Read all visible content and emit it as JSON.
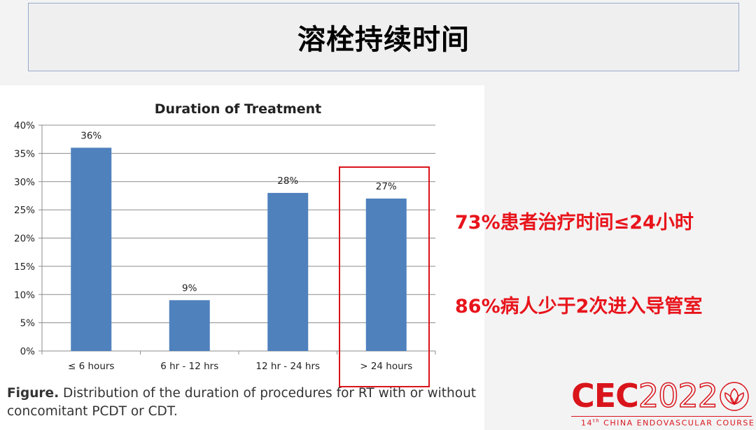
{
  "slide": {
    "title": "溶栓持续时间",
    "notes": [
      "73%患者治疗时间≤24小时",
      "86%病人少于2次进入导管室"
    ]
  },
  "figure": {
    "caption_label": "Figure.",
    "caption_text": "Distribution of the duration of procedures for RT with or without concomitant PCDT or CDT."
  },
  "logo": {
    "main": "CEC",
    "year": "2022",
    "arc_text": "China Endovascular Course",
    "sub_prefix": "14",
    "sub_sup": "th",
    "sub_rest": " CHINA ENDOVASCULAR COURSE"
  },
  "colors": {
    "bar": "#4f81bd",
    "highlight": "#d9141b",
    "note": "#e8141b"
  },
  "chart_data": {
    "type": "bar",
    "title": "Duration of Treatment",
    "categories": [
      "≤ 6 hours",
      "6 hr - 12 hrs",
      "12 hr - 24 hrs",
      "> 24 hours"
    ],
    "values": [
      36,
      9,
      28,
      27
    ],
    "data_labels": [
      "36%",
      "9%",
      "28%",
      "27%"
    ],
    "yticks": [
      "0%",
      "5%",
      "10%",
      "15%",
      "20%",
      "25%",
      "30%",
      "35%",
      "40%"
    ],
    "ylim": [
      0,
      40
    ],
    "xlabel": "",
    "ylabel": "",
    "grid": true,
    "highlighted_category": "> 24 hours"
  }
}
